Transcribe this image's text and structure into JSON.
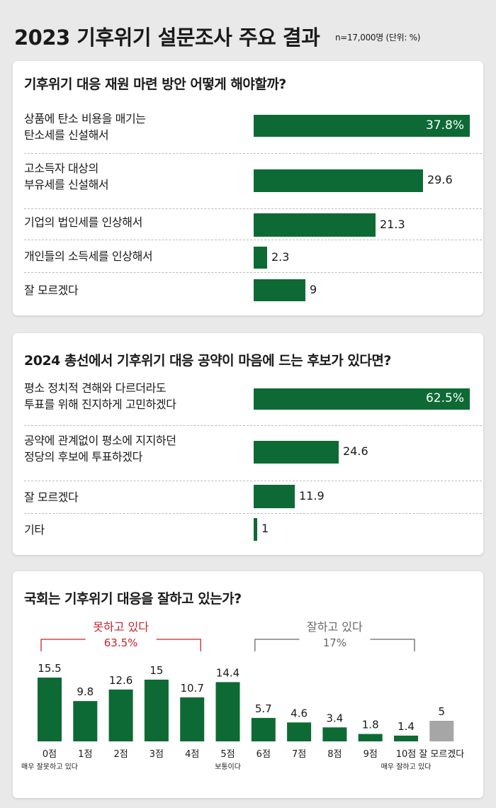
{
  "header": {
    "title": "2023 기후위기 설문조사 주요 결과",
    "unit": "n=17,000명 (단위: %)"
  },
  "colors": {
    "bar": "#0e6a34",
    "gray_bar": "#a6a6a6",
    "red": "#c8232c",
    "gray_text": "#666666"
  },
  "chart_data": [
    {
      "type": "bar",
      "orientation": "horizontal",
      "title": "기후위기 대응 재원 마련 방안 어떻게 해야할까?",
      "categories": [
        [
          "상품에 탄소 비용을 매기는",
          "탄소세를 신설해서"
        ],
        [
          "고소득자 대상의",
          "부유세를 신설해서"
        ],
        [
          "기업의 법인세를 인상해서"
        ],
        [
          "개인들의 소득세를 인상해서"
        ],
        [
          "잘 모르겠다"
        ]
      ],
      "values": [
        37.8,
        29.6,
        21.3,
        2.3,
        9
      ],
      "labels": [
        "37.8%",
        "29.6",
        "21.3",
        "2.3",
        "9"
      ],
      "xlim": [
        0,
        37.8
      ]
    },
    {
      "type": "bar",
      "orientation": "horizontal",
      "title": "2024 총선에서 기후위기 대응 공약이 마음에 드는 후보가 있다면?",
      "categories": [
        [
          "평소 정치적 견해와 다르더라도",
          "투표를 위해 진지하게 고민하겠다"
        ],
        [
          "공약에 관계없이 평소에 지지하던",
          "정당의 후보에 투표하겠다"
        ],
        [
          "잘 모르겠다"
        ],
        [
          "기타"
        ]
      ],
      "values": [
        62.5,
        24.6,
        11.9,
        1
      ],
      "labels": [
        "62.5%",
        "24.6",
        "11.9",
        "1"
      ],
      "xlim": [
        0,
        62.5
      ]
    },
    {
      "type": "bar",
      "orientation": "vertical",
      "title": "국회는 기후위기 대응을 잘하고 있는가?",
      "categories": [
        "0점",
        "1점",
        "2점",
        "3점",
        "4점",
        "5점",
        "6점",
        "7점",
        "8점",
        "9점",
        "10점",
        "잘 모르겠다"
      ],
      "values": [
        15.5,
        9.8,
        12.6,
        15,
        10.7,
        14.4,
        5.7,
        4.6,
        3.4,
        1.8,
        1.4,
        5
      ],
      "labels": [
        "15.5",
        "9.8",
        "12.6",
        "15",
        "10.7",
        "14.4",
        "5.7",
        "4.6",
        "3.4",
        "1.8",
        "1.4",
        "5"
      ],
      "sublabels": [
        "매우 잘못하고 있다",
        "",
        "",
        "",
        "",
        "보통이다",
        "",
        "",
        "",
        "",
        "매우 잘하고 있다",
        ""
      ],
      "gray_index": 11,
      "groups": [
        {
          "label": "못하고 있다",
          "value": "63.5%",
          "from": 0,
          "to": 4,
          "color": "red"
        },
        {
          "label": "잘하고 있다",
          "value": "17%",
          "from": 6,
          "to": 10,
          "color": "gray"
        }
      ],
      "ylim": [
        0,
        15.5
      ]
    }
  ]
}
